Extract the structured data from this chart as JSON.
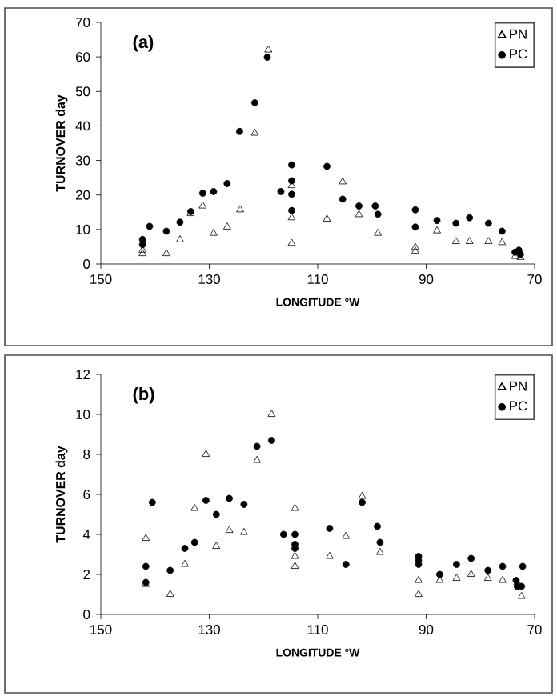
{
  "chart_data": [
    {
      "type": "scatter",
      "title": "(a)",
      "xlabel": "LONGITUDE °W",
      "ylabel": "TURNOVER  day",
      "xlim": [
        150,
        70
      ],
      "xticks": [
        150,
        130,
        110,
        90,
        70
      ],
      "ylim": [
        0,
        70
      ],
      "yticks": [
        0,
        10,
        20,
        30,
        40,
        50,
        60,
        70
      ],
      "grid": false,
      "legend": "top right",
      "series": [
        {
          "name": "PN",
          "color": "#000000",
          "marker": "triangle",
          "x": [
            142.3,
            142.3,
            137.9,
            135.4,
            133.4,
            131.2,
            129.2,
            126.7,
            124.3,
            121.6,
            119.1,
            114.8,
            114.8,
            114.8,
            108.3,
            105.4,
            102.4,
            98.9,
            92,
            92,
            88,
            84.5,
            82,
            78.5,
            76,
            73.6,
            72.6
          ],
          "values": [
            4,
            3,
            3,
            7,
            14.6,
            16.8,
            8.9,
            10.7,
            15.7,
            37.9,
            62,
            22.7,
            13.4,
            6,
            13,
            23.8,
            14.3,
            8.9,
            4.8,
            3.7,
            9.6,
            6.5,
            6.5,
            6.5,
            6.2,
            2.2,
            1.9
          ]
        },
        {
          "name": "PC",
          "color": "#000000",
          "marker": "circle",
          "x": [
            142.3,
            142.3,
            141,
            137.9,
            135.4,
            133.4,
            131.2,
            129.2,
            126.7,
            124.4,
            121.6,
            119.3,
            116.8,
            114.8,
            114.8,
            114.8,
            114.8,
            108.3,
            105.4,
            102.4,
            99.4,
            98.9,
            92,
            92,
            88,
            84.5,
            82,
            78.5,
            76,
            73.6,
            72.9,
            72.6
          ],
          "values": [
            7.1,
            5.6,
            10.9,
            9.5,
            12.1,
            15.2,
            20.5,
            21,
            23.3,
            38.4,
            46.7,
            59.9,
            21,
            28.7,
            24.1,
            20.2,
            15.5,
            28.3,
            18.8,
            16.8,
            16.8,
            14.4,
            15.7,
            10.7,
            12.6,
            11.8,
            13.4,
            11.8,
            9.5,
            3.4,
            4,
            2.8
          ]
        }
      ]
    },
    {
      "type": "scatter",
      "title": "(b)",
      "xlabel": "LONGITUDE °W",
      "ylabel": "TURNOVER  day",
      "xlim": [
        150,
        70
      ],
      "xticks": [
        150,
        130,
        110,
        90,
        70
      ],
      "ylim": [
        0,
        12
      ],
      "yticks": [
        0,
        2,
        4,
        6,
        8,
        10,
        12
      ],
      "grid": false,
      "legend": "top right",
      "series": [
        {
          "name": "PN",
          "color": "#000000",
          "marker": "triangle",
          "x": [
            141.7,
            141.7,
            137.2,
            134.5,
            132.7,
            130.6,
            128.7,
            126.3,
            123.6,
            121.2,
            118.5,
            114.2,
            114.2,
            114.2,
            107.8,
            104.8,
            101.8,
            98.5,
            91.4,
            91.4,
            87.5,
            84.4,
            81.7,
            78.6,
            75.9,
            73.2,
            72.4
          ],
          "values": [
            3.8,
            1.5,
            1.0,
            2.5,
            5.3,
            8.0,
            3.4,
            4.2,
            4.1,
            7.7,
            10.0,
            5.3,
            2.9,
            2.4,
            2.9,
            3.9,
            5.9,
            3.1,
            1.7,
            1.0,
            1.7,
            1.8,
            2.0,
            1.8,
            1.7,
            1.6,
            0.9
          ]
        },
        {
          "name": "PC",
          "color": "#000000",
          "marker": "circle",
          "x": [
            141.7,
            141.7,
            140.5,
            137.2,
            134.5,
            132.7,
            130.6,
            128.7,
            126.3,
            123.6,
            121.2,
            118.5,
            116.3,
            114.2,
            114.2,
            114.2,
            107.8,
            104.8,
            101.8,
            99.0,
            98.5,
            91.4,
            91.4,
            91.4,
            87.5,
            84.4,
            81.7,
            78.6,
            75.9,
            73.4,
            73.2,
            72.4,
            72.2
          ],
          "values": [
            2.4,
            1.6,
            5.6,
            2.2,
            3.3,
            3.6,
            5.7,
            5.0,
            5.8,
            5.5,
            8.4,
            8.7,
            4.0,
            4.0,
            3.5,
            3.3,
            4.3,
            2.5,
            5.6,
            4.4,
            3.6,
            2.9,
            2.7,
            2.5,
            2.0,
            2.5,
            2.8,
            2.2,
            2.4,
            1.7,
            1.4,
            1.4,
            2.4
          ]
        }
      ]
    }
  ]
}
